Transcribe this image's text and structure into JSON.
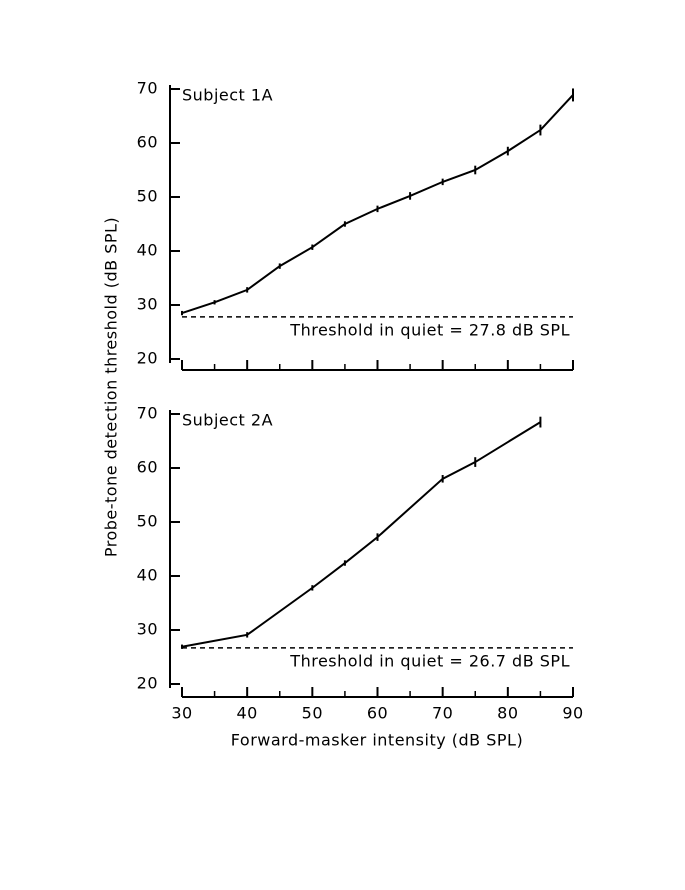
{
  "chart_data": [
    {
      "type": "line",
      "title": "Subject 1A",
      "ylabel": "Probe-tone detection threshold (dB SPL)",
      "x": [
        30,
        35,
        40,
        45,
        50,
        55,
        60,
        65,
        70,
        75,
        80,
        85,
        90
      ],
      "series": [
        {
          "color": "#000000",
          "values": [
            28.5,
            30.5,
            32.8,
            37.2,
            40.7,
            45.0,
            47.8,
            50.2,
            52.8,
            55.0,
            58.5,
            62.4,
            68.9
          ],
          "errors": [
            0.4,
            0.4,
            0.5,
            0.5,
            0.5,
            0.5,
            0.6,
            0.7,
            0.6,
            0.8,
            0.8,
            1.0,
            1.2
          ]
        }
      ],
      "threshold": 27.8,
      "threshold_label": "Threshold in quiet = 27.8 dB SPL",
      "xlim": [
        30,
        90
      ],
      "xticks": [
        30,
        40,
        50,
        60,
        70,
        80,
        90
      ],
      "xticks_minor": [
        35,
        45,
        55,
        65,
        75,
        85
      ],
      "xtick_labels": false,
      "ylim": [
        20,
        70
      ],
      "yticks": [
        20,
        30,
        40,
        50,
        60,
        70
      ]
    },
    {
      "type": "line",
      "title": "Subject 2A",
      "xlabel": "Forward-masker intensity (dB SPL)",
      "x": [
        30,
        40,
        50,
        55,
        60,
        70,
        75,
        85
      ],
      "series": [
        {
          "color": "#000000",
          "values": [
            26.9,
            29.1,
            37.8,
            42.4,
            47.2,
            58.0,
            61.1,
            68.5
          ],
          "errors": [
            0.4,
            0.5,
            0.5,
            0.5,
            0.7,
            0.7,
            0.9,
            1.0
          ]
        }
      ],
      "threshold": 26.7,
      "threshold_label": "Threshold in quiet = 26.7 dB SPL",
      "xlim": [
        30,
        90
      ],
      "xticks": [
        30,
        40,
        50,
        60,
        70,
        80,
        90
      ],
      "xticks_minor": [
        35,
        45,
        55,
        65,
        75,
        85
      ],
      "xtick_labels": true,
      "ylim": [
        20,
        70
      ],
      "yticks": [
        20,
        30,
        40,
        50,
        60,
        70
      ]
    }
  ]
}
